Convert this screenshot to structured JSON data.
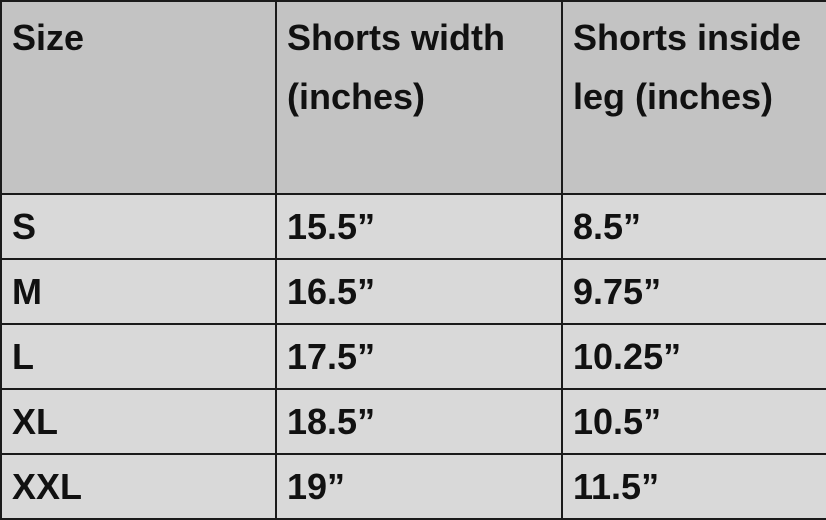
{
  "table": {
    "headers": [
      "Size",
      "Shorts width (inches)",
      "Shorts inside leg (inches)"
    ],
    "rows": [
      [
        "S",
        "15.5”",
        "8.5”"
      ],
      [
        "M",
        "16.5”",
        "9.75”"
      ],
      [
        "L",
        "17.5”",
        "10.25”"
      ],
      [
        "XL",
        "18.5”",
        "10.5”"
      ],
      [
        "XXL",
        "19”",
        "11.5”"
      ]
    ]
  },
  "colors": {
    "header_bg": "#c3c3c3",
    "body_bg": "#d9d9d9",
    "border": "#1a1a1a"
  }
}
